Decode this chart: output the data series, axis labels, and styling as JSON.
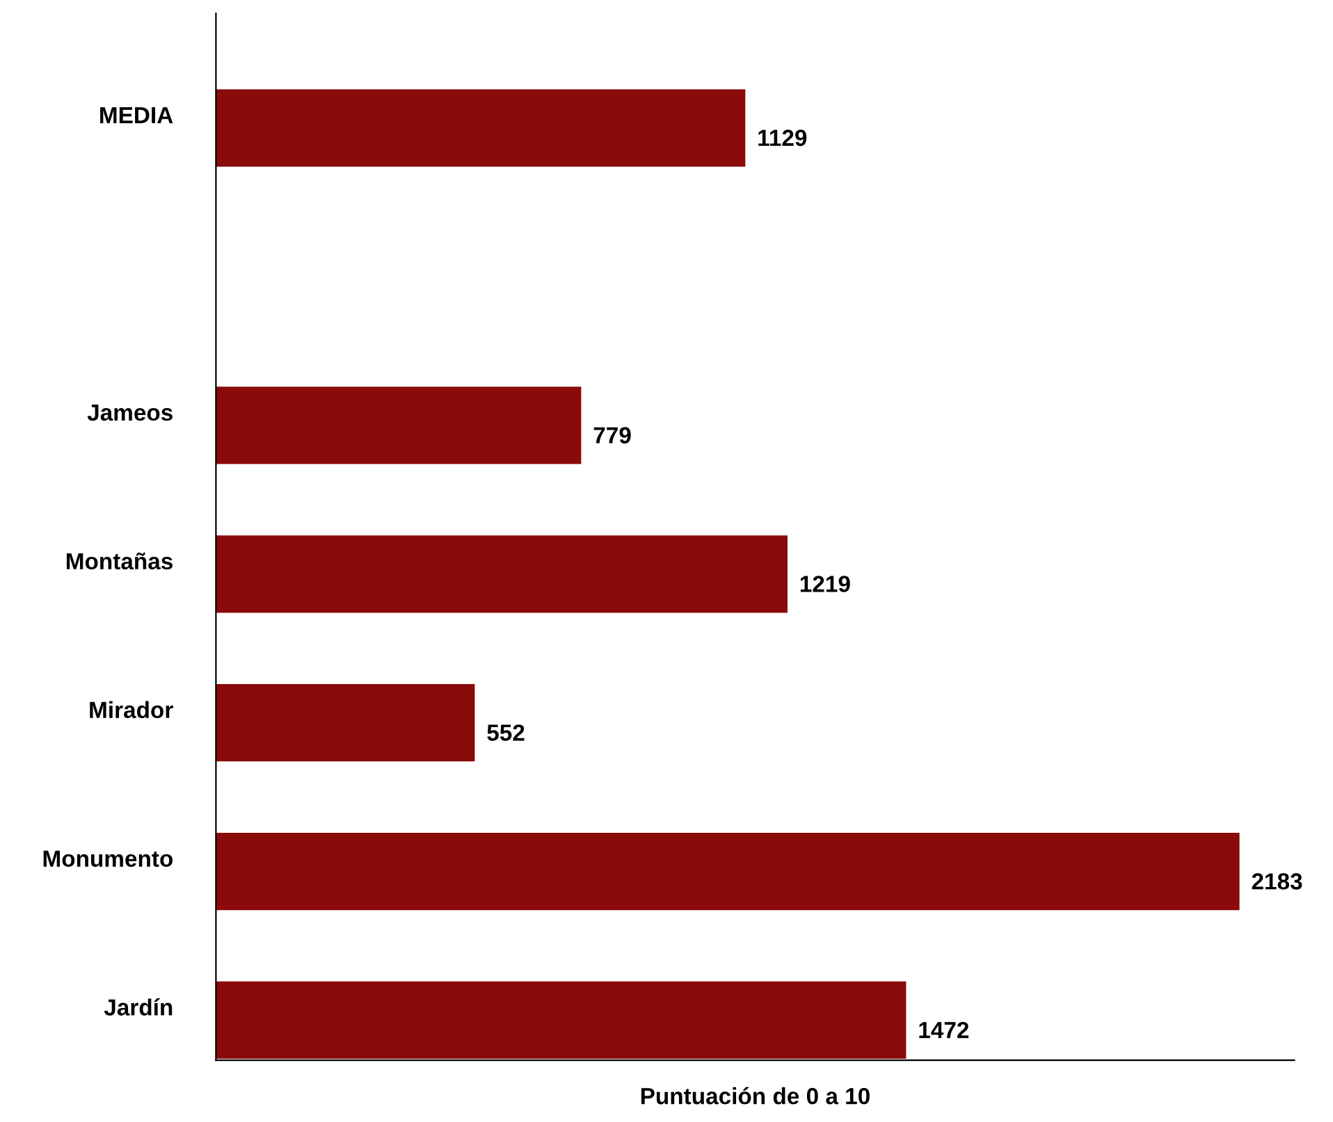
{
  "chart_data": {
    "type": "bar",
    "orientation": "horizontal",
    "xlabel": "Puntuación de 0 a 10",
    "categories": [
      "MEDIA",
      null,
      "Jameos",
      "Montañas",
      "Mirador",
      "Monumento",
      "Jardín"
    ],
    "values": [
      1129,
      null,
      779,
      1219,
      552,
      2183,
      1472
    ],
    "color": "#8b0a0a",
    "xlim": [
      0,
      2300
    ],
    "data_labels": true,
    "tick_labels": "y",
    "grid": false,
    "legend": false
  }
}
